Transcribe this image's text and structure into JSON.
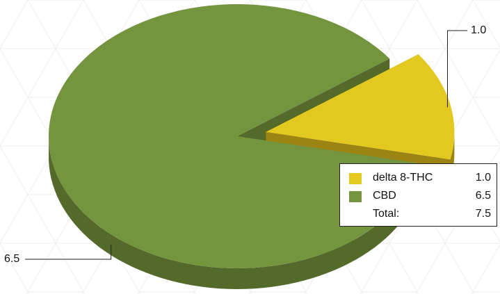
{
  "chart_data": {
    "type": "pie",
    "subtype": "3d-exploded",
    "slices": [
      {
        "label": "delta 8-THC",
        "value": 1.0,
        "value_label": "1.0",
        "color": "#e3c81f",
        "side_color": "#9c8413",
        "exploded": true
      },
      {
        "label": "CBD",
        "value": 6.5,
        "value_label": "6.5",
        "color": "#74943e",
        "side_color": "#536a2b",
        "exploded": false
      }
    ],
    "legend": {
      "placement": "right",
      "total_label": "Total:",
      "total_value": "7.5"
    }
  }
}
